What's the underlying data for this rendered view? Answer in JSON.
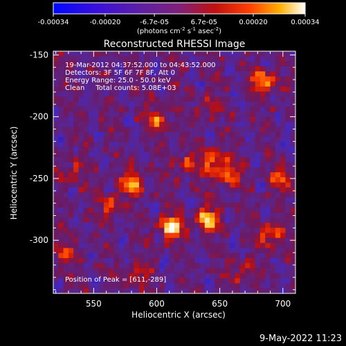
{
  "colorbar": {
    "ticks": [
      "-0.00034",
      "-0.00020",
      "-6.7e-05",
      "6.7e-05",
      "0.00020",
      "0.00034"
    ],
    "unit_prefix": "(photons cm",
    "unit_exp1": "-2",
    "unit_mid": " s",
    "unit_exp2": "-1",
    "unit_mid2": " asec",
    "unit_exp3": "-2",
    "unit_suffix": ")",
    "range": [
      -0.00034,
      0.00034
    ]
  },
  "chart_data": {
    "type": "heatmap",
    "title": "Reconstructed RHESSI Image",
    "xlabel": "Heliocentric X (arcsec)",
    "ylabel": "Heliocentric Y (arcsec)",
    "xlim": [
      518,
      710
    ],
    "ylim": [
      -343,
      -147
    ],
    "x_ticks": [
      550,
      600,
      650,
      700
    ],
    "y_ticks": [
      -150,
      -200,
      -250,
      -300
    ],
    "colormap": "rhessi-blue-purple-red-yellow-white",
    "annotations": [
      "19-Mar-2012 04:37:52.000 to 04:43:52.000",
      "Detectors: 3F 5F 6F 7F 8F, Att 0",
      "Energy Range: 25.0 - 50.0 keV",
      "Clean     Total counts: 5.08E+03"
    ],
    "peak_label": "Position of Peak = [611,-289]",
    "peak": [
      611,
      -289
    ],
    "sources": [
      {
        "x": 611,
        "y": -289,
        "intensity": 1.0
      },
      {
        "x": 640,
        "y": -283,
        "intensity": 0.9
      },
      {
        "x": 685,
        "y": -172,
        "intensity": 0.85
      },
      {
        "x": 581,
        "y": -254,
        "intensity": 0.75
      },
      {
        "x": 656,
        "y": -247,
        "intensity": 0.7
      },
      {
        "x": 645,
        "y": -236,
        "intensity": 0.7
      },
      {
        "x": 601,
        "y": -202,
        "intensity": 0.6
      },
      {
        "x": 563,
        "y": -271,
        "intensity": 0.55
      },
      {
        "x": 690,
        "y": -296,
        "intensity": 0.65
      },
      {
        "x": 699,
        "y": -250,
        "intensity": 0.55
      },
      {
        "x": 622,
        "y": -239,
        "intensity": 0.5
      },
      {
        "x": 531,
        "y": -246,
        "intensity": 0.4
      },
      {
        "x": 583,
        "y": -328,
        "intensity": 0.5
      },
      {
        "x": 528,
        "y": -312,
        "intensity": 0.45
      },
      {
        "x": 668,
        "y": -325,
        "intensity": 0.45
      },
      {
        "x": 640,
        "y": -193,
        "intensity": 0.35
      }
    ]
  },
  "footer": {
    "timestamp": "9-May-2022 11:23"
  }
}
